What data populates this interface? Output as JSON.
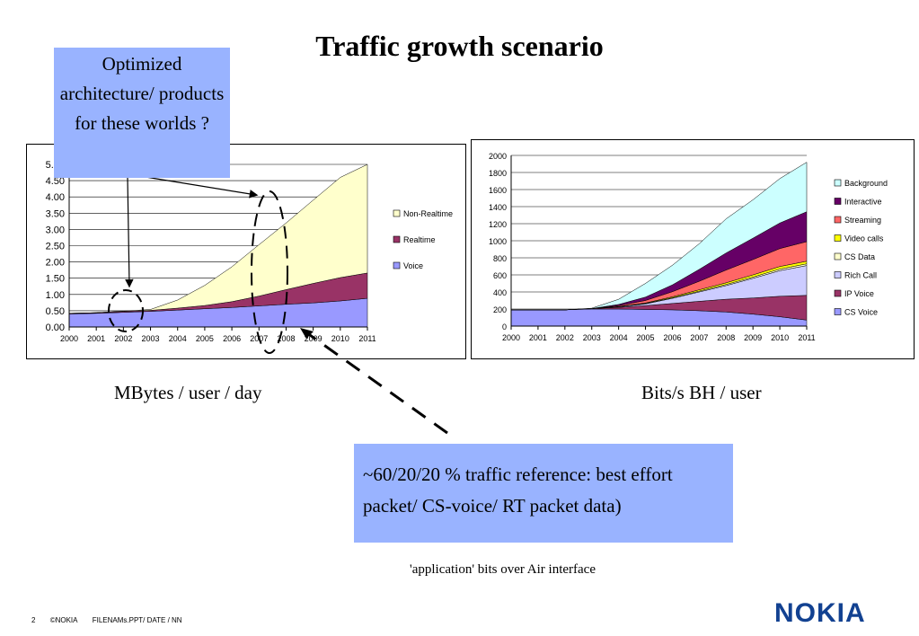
{
  "slide": {
    "title": "Traffic growth scenario",
    "caption_left": "MBytes / user / day",
    "caption_right": "Bits/s BH / user",
    "callout_top": "Optimized architecture/ products for these worlds ?",
    "callout_bottom": "~60/20/20 % traffic reference: best effort packet/ CS-voice/ RT packet data)",
    "note": "'application' bits over Air interface",
    "footer": {
      "page": "2",
      "copyright": "©NOKIA",
      "file": "FILENAMs.PPT/ DATE / NN"
    },
    "logo": "NOKIA",
    "colors": {
      "brand": "#124191",
      "callout": "#99b3ff"
    }
  },
  "chart_data": [
    {
      "type": "area",
      "stacked": true,
      "x": [
        "2000",
        "2001",
        "2002",
        "2003",
        "2004",
        "2005",
        "2006",
        "2007",
        "2008",
        "2009",
        "2010",
        "2011"
      ],
      "ylim": [
        0,
        5.0
      ],
      "yticks": [
        "0.00",
        "0.50",
        "1.00",
        "1.50",
        "2.00",
        "2.50",
        "3.00",
        "3.50",
        "4.00",
        "4.50",
        "5.00"
      ],
      "grid": true,
      "legend_position": "right",
      "series": [
        {
          "name": "Voice",
          "color": "#9999ff",
          "values": [
            0.4,
            0.42,
            0.45,
            0.48,
            0.52,
            0.56,
            0.6,
            0.65,
            0.7,
            0.74,
            0.8,
            0.88
          ]
        },
        {
          "name": "Realtime",
          "color": "#993366",
          "values": [
            0.02,
            0.02,
            0.03,
            0.03,
            0.06,
            0.1,
            0.18,
            0.3,
            0.45,
            0.6,
            0.72,
            0.78
          ]
        },
        {
          "name": "Non-Realtime",
          "color": "#ffffcc",
          "values": [
            0.0,
            0.0,
            0.01,
            0.03,
            0.25,
            0.62,
            1.07,
            1.58,
            2.05,
            2.56,
            3.08,
            3.34
          ]
        }
      ]
    },
    {
      "type": "area",
      "stacked": true,
      "x": [
        "2000",
        "2001",
        "2002",
        "2003",
        "2004",
        "2005",
        "2006",
        "2007",
        "2008",
        "2009",
        "2010",
        "2011"
      ],
      "ylim": [
        0,
        2000
      ],
      "yticks": [
        "0",
        "200",
        "400",
        "600",
        "800",
        "1000",
        "1200",
        "1400",
        "1600",
        "1800",
        "2000"
      ],
      "grid": true,
      "legend_position": "right",
      "series": [
        {
          "name": "CS Voice",
          "color": "#9999ff",
          "values": [
            190,
            190,
            190,
            200,
            200,
            195,
            190,
            180,
            165,
            140,
            110,
            70
          ]
        },
        {
          "name": "IP Voice",
          "color": "#993366",
          "values": [
            0,
            0,
            0,
            5,
            20,
            45,
            75,
            110,
            150,
            190,
            240,
            290
          ]
        },
        {
          "name": "Rich Call",
          "color": "#ccccff",
          "values": [
            0,
            0,
            0,
            0,
            5,
            20,
            60,
            110,
            160,
            230,
            300,
            350
          ]
        },
        {
          "name": "CS Data",
          "color": "#ffffcc",
          "values": [
            0,
            0,
            0,
            0,
            2,
            5,
            8,
            10,
            12,
            15,
            18,
            20
          ]
        },
        {
          "name": "Video calls",
          "color": "#ffff00",
          "values": [
            0,
            0,
            0,
            0,
            2,
            5,
            10,
            15,
            20,
            25,
            30,
            30
          ]
        },
        {
          "name": "Streaming",
          "color": "#ff6666",
          "values": [
            0,
            0,
            0,
            0,
            10,
            30,
            60,
            100,
            150,
            180,
            210,
            230
          ]
        },
        {
          "name": "Interactive",
          "color": "#660066",
          "values": [
            0,
            0,
            0,
            0,
            15,
            40,
            80,
            140,
            200,
            250,
            300,
            350
          ]
        },
        {
          "name": "Background",
          "color": "#ccffff",
          "values": [
            0,
            0,
            0,
            5,
            60,
            160,
            230,
            300,
            400,
            450,
            520,
            580
          ]
        }
      ]
    }
  ]
}
